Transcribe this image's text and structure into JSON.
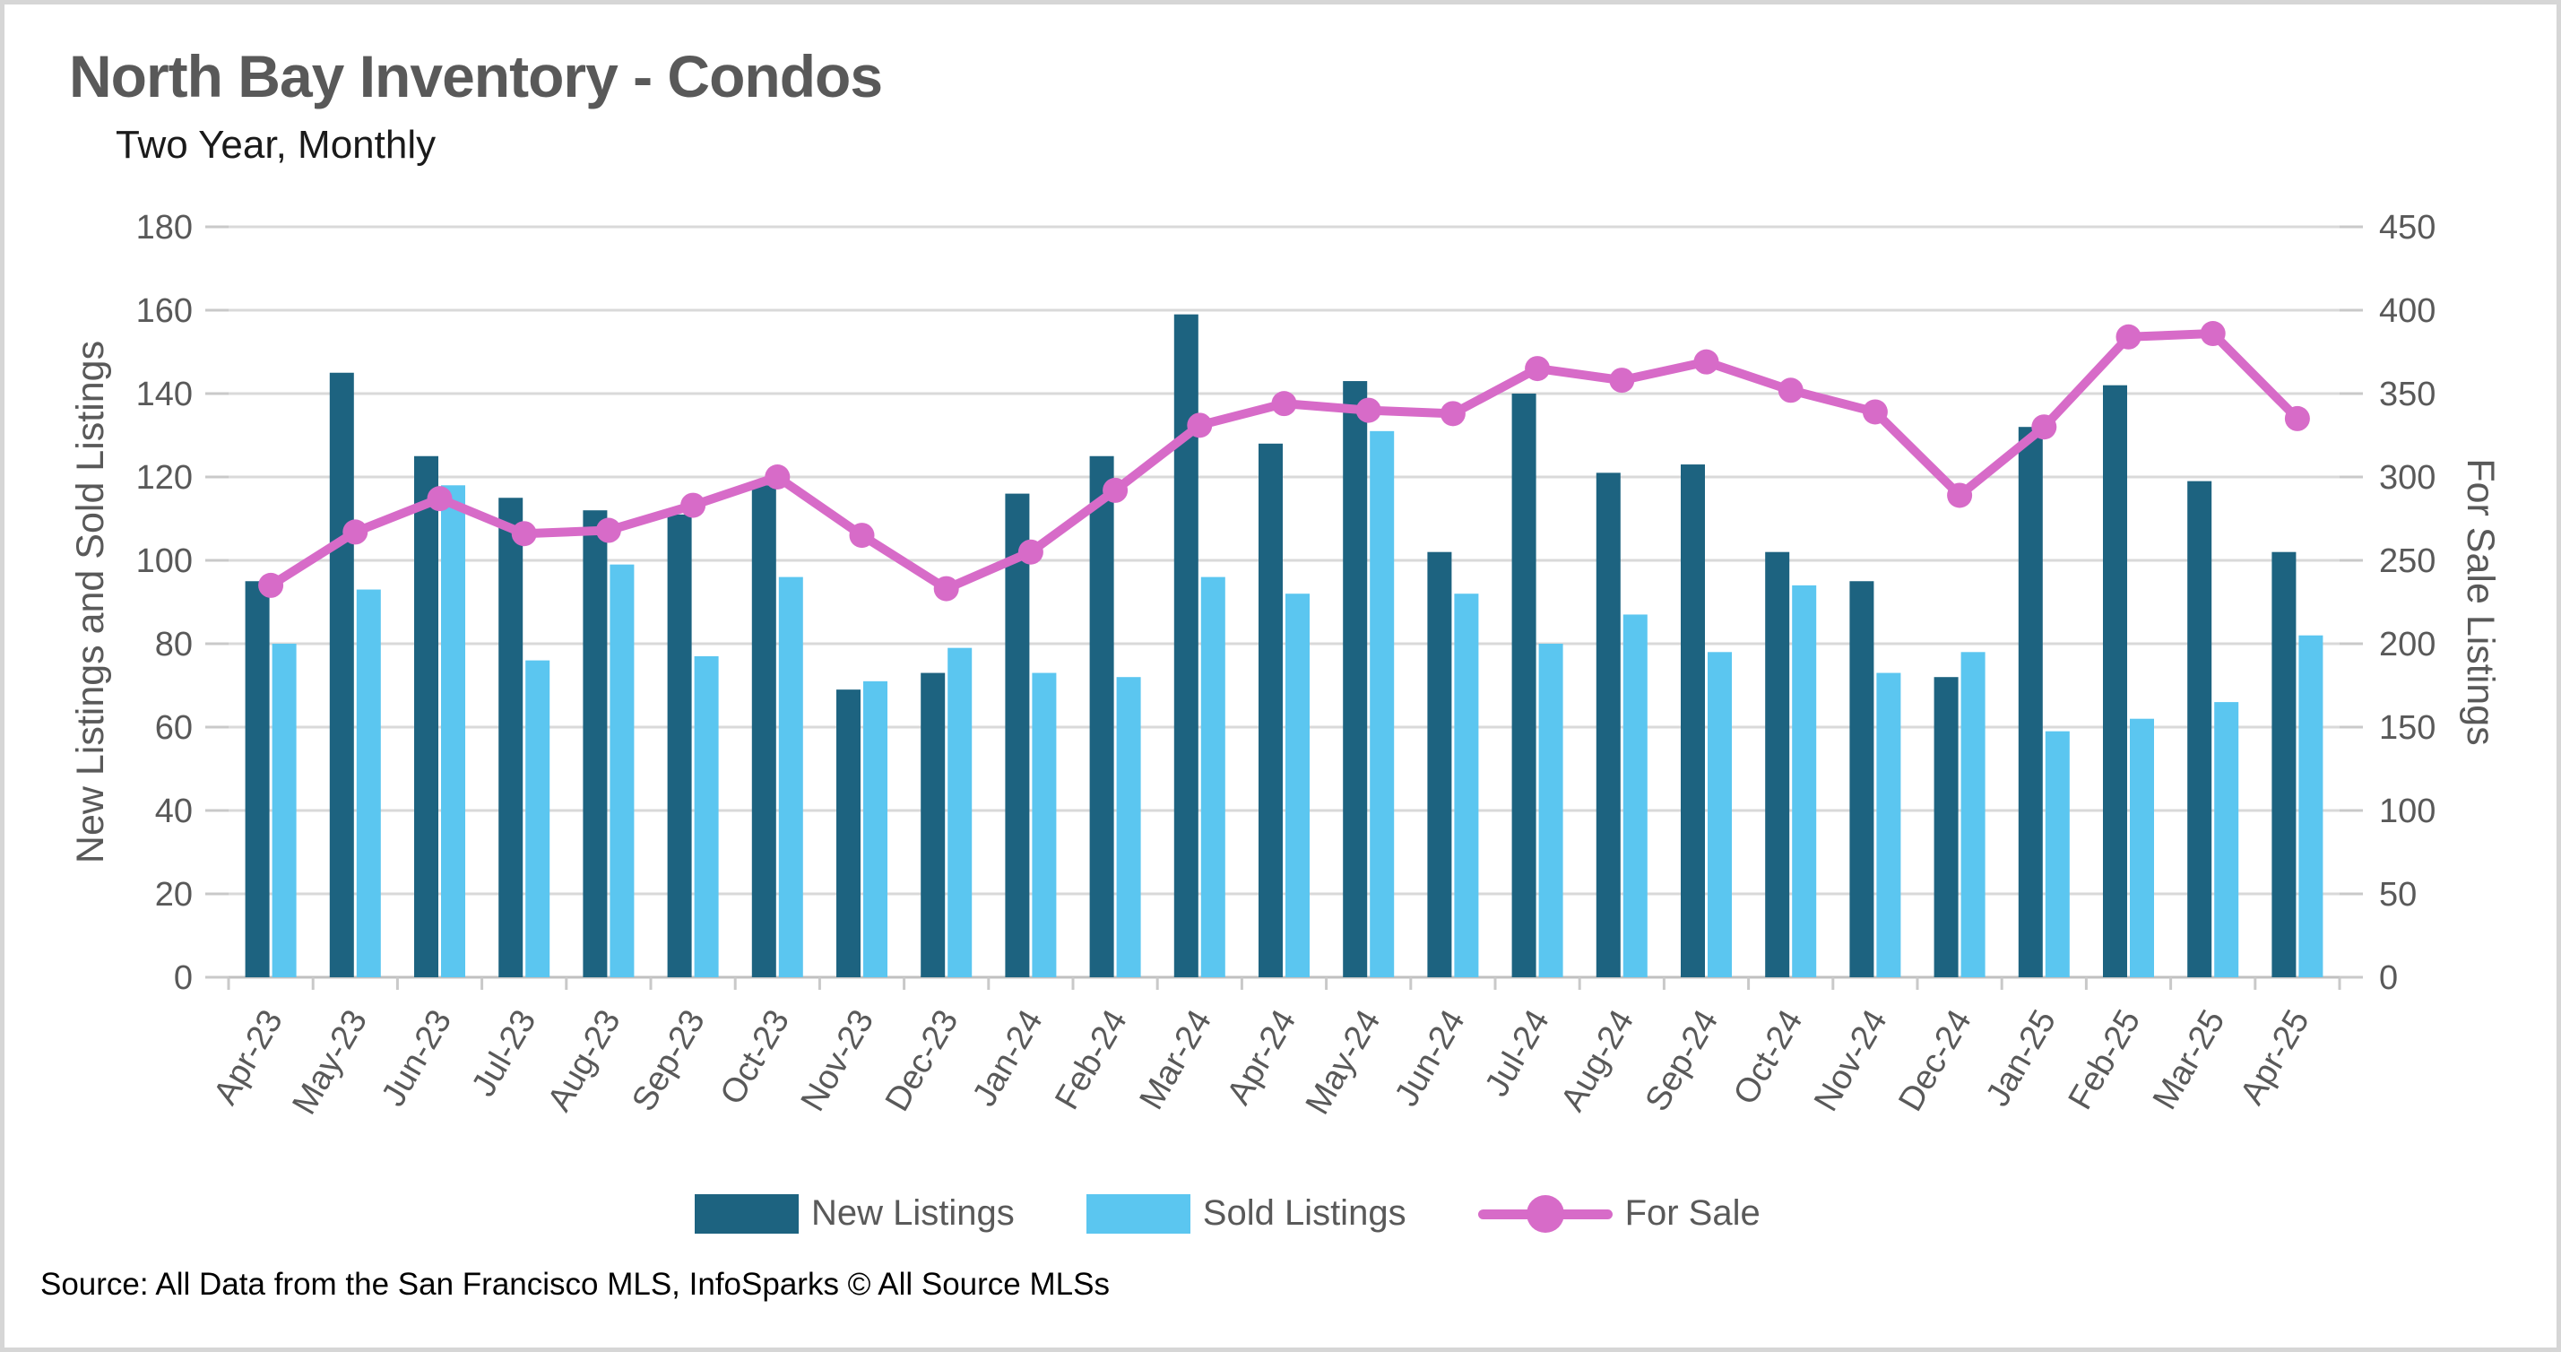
{
  "page": {
    "title": "North Bay Inventory - Condos",
    "subtitle": "Two Year, Monthly",
    "source": "Source: All Data from the San Francisco MLS, InfoSparks © All Source MLSs"
  },
  "legend": {
    "new_listings": "New Listings",
    "sold_listings": "Sold Listings",
    "for_sale": "For Sale"
  },
  "colors": {
    "new_listings": "#1d6380",
    "sold_listings": "#5bc6f0",
    "for_sale": "#d76bc8",
    "grid": "#d9d9d9",
    "baseline": "#c0c0c0",
    "tick": "#c9c9c9",
    "axis_text": "#595959",
    "background": "#ffffff",
    "border": "#d6d6d6"
  },
  "chart_data": {
    "type": "bar",
    "subtype": "grouped-bars-with-line",
    "title": "North Bay Inventory - Condos",
    "subtitle": "Two Year, Monthly",
    "categories": [
      "Apr-23",
      "May-23",
      "Jun-23",
      "Jul-23",
      "Aug-23",
      "Sep-23",
      "Oct-23",
      "Nov-23",
      "Dec-23",
      "Jan-24",
      "Feb-24",
      "Mar-24",
      "Apr-24",
      "May-24",
      "Jun-24",
      "Jul-24",
      "Aug-24",
      "Sep-24",
      "Oct-24",
      "Nov-24",
      "Dec-24",
      "Jan-25",
      "Feb-25",
      "Mar-25",
      "Apr-25"
    ],
    "series": [
      {
        "name": "New Listings",
        "type": "bar",
        "axis": "left",
        "color": "#1d6380",
        "values": [
          95,
          145,
          125,
          115,
          112,
          111,
          118,
          69,
          73,
          116,
          125,
          159,
          128,
          143,
          102,
          140,
          121,
          123,
          102,
          95,
          72,
          132,
          142,
          119,
          102
        ]
      },
      {
        "name": "Sold Listings",
        "type": "bar",
        "axis": "left",
        "color": "#5bc6f0",
        "values": [
          80,
          93,
          118,
          76,
          99,
          77,
          96,
          71,
          79,
          73,
          72,
          96,
          92,
          131,
          92,
          80,
          87,
          78,
          94,
          73,
          78,
          59,
          62,
          66,
          82
        ]
      },
      {
        "name": "For Sale",
        "type": "line",
        "axis": "right",
        "color": "#d76bc8",
        "values": [
          235,
          267,
          287,
          266,
          268,
          283,
          300,
          265,
          233,
          255,
          292,
          331,
          344,
          340,
          338,
          365,
          358,
          369,
          352,
          339,
          289,
          330,
          384,
          386,
          335
        ]
      }
    ],
    "left_axis": {
      "label": "New Listings and Sold Listings",
      "min": 0,
      "max": 180,
      "step": 20,
      "ticks": [
        0,
        20,
        40,
        60,
        80,
        100,
        120,
        140,
        160,
        180
      ]
    },
    "right_axis": {
      "label": "For Sale Listings",
      "min": 0,
      "max": 450,
      "step": 50,
      "ticks": [
        0,
        50,
        100,
        150,
        200,
        250,
        300,
        350,
        400,
        450
      ]
    },
    "grid": true,
    "legend_position": "bottom"
  }
}
